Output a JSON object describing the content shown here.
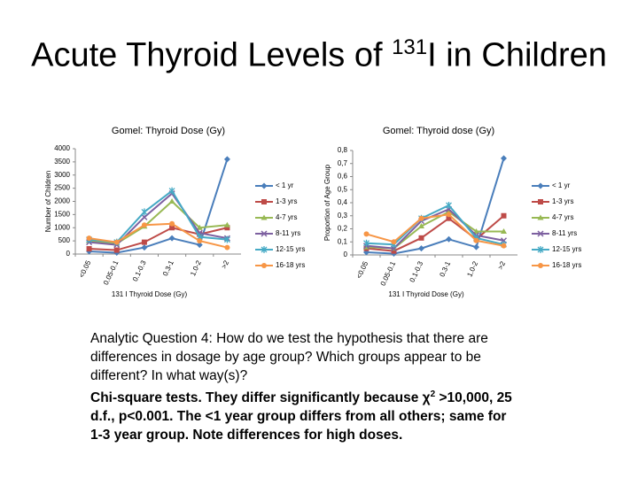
{
  "slide": {
    "title_before": "Acute Thyroid Levels of ",
    "title_sup": "131",
    "title_after": "I in Children",
    "question": "Analytic Question 4:  How do we test the hypothesis that there are differences in dosage by age group?  Which groups appear to be different?  In what way(s)?",
    "answer_before": "Chi-square tests.   They differ significantly because χ",
    "answer_sup": "2",
    "answer_after": " >10,000, 25 d.f., p<0.001. The <1 year group differs from all others; same for 1-3 year group.  Note differences for high doses."
  },
  "chart_data": [
    {
      "type": "line",
      "title": "Gomel: Thyroid Dose (Gy)",
      "x_label": "131 I Thyroid Dose (Gy)",
      "y_label": "Number of Children",
      "categories": [
        "<0.05",
        "0.05-0.1",
        "0.1-0.3",
        "0.3-1",
        "1.0-2",
        ">2"
      ],
      "ylim": [
        0,
        4000
      ],
      "yticks": [
        0,
        500,
        1000,
        1500,
        2000,
        2500,
        3000,
        3500,
        4000
      ],
      "legend": "right",
      "series": [
        {
          "name": "< 1 yr",
          "color": "#4a7ebb",
          "marker": "diamond",
          "values": [
            100,
            50,
            250,
            600,
            350,
            3600
          ]
        },
        {
          "name": "1-3 yrs",
          "color": "#be4b48",
          "marker": "square",
          "values": [
            200,
            150,
            450,
            1000,
            750,
            1000
          ]
        },
        {
          "name": "4-7 yrs",
          "color": "#98b954",
          "marker": "triangle",
          "values": [
            500,
            400,
            1050,
            2000,
            1000,
            1100
          ]
        },
        {
          "name": "8-11 yrs",
          "color": "#7d60a0",
          "marker": "x",
          "values": [
            450,
            350,
            1400,
            2300,
            800,
            600
          ]
        },
        {
          "name": "12-15 yrs",
          "color": "#46aac5",
          "marker": "star",
          "values": [
            550,
            450,
            1600,
            2400,
            650,
            550
          ]
        },
        {
          "name": "16-18 yrs",
          "color": "#f79646",
          "marker": "circle",
          "values": [
            600,
            450,
            1100,
            1150,
            500,
            250
          ]
        }
      ]
    },
    {
      "type": "line",
      "title": "Gomel: Thyroid dose (Gy)",
      "x_label": "131 I Thyroid Dose (Gy)",
      "y_label": "Proportion of Age Group",
      "categories": [
        "<0.05",
        "0.05-0.1",
        "0.1-0.3",
        "0.3-1",
        "1.0-2",
        ">2"
      ],
      "ylim": [
        0,
        0.8
      ],
      "yticks": [
        0,
        {
          "value": 0.1,
          "label": "0,1"
        },
        {
          "value": 0.2,
          "label": "0,2"
        },
        {
          "value": 0.3,
          "label": "0,3"
        },
        {
          "value": 0.4,
          "label": "0,4"
        },
        {
          "value": 0.5,
          "label": "0,5"
        },
        {
          "value": 0.6,
          "label": "0,6"
        },
        {
          "value": 0.7,
          "label": "0,7"
        },
        {
          "value": 0.8,
          "label": "0,8"
        }
      ],
      "legend": "right",
      "series": [
        {
          "name": "< 1 yr",
          "color": "#4a7ebb",
          "marker": "diamond",
          "values": [
            0.02,
            0.01,
            0.05,
            0.12,
            0.06,
            0.74
          ]
        },
        {
          "name": "1-3 yrs",
          "color": "#be4b48",
          "marker": "square",
          "values": [
            0.05,
            0.03,
            0.13,
            0.28,
            0.12,
            0.3
          ]
        },
        {
          "name": "4-7 yrs",
          "color": "#98b954",
          "marker": "triangle",
          "values": [
            0.06,
            0.05,
            0.22,
            0.33,
            0.18,
            0.18
          ]
        },
        {
          "name": "8-11 yrs",
          "color": "#7d60a0",
          "marker": "x",
          "values": [
            0.07,
            0.05,
            0.26,
            0.35,
            0.15,
            0.11
          ]
        },
        {
          "name": "12-15 yrs",
          "color": "#46aac5",
          "marker": "star",
          "values": [
            0.09,
            0.08,
            0.28,
            0.38,
            0.13,
            0.08
          ]
        },
        {
          "name": "16-18 yrs",
          "color": "#f79646",
          "marker": "circle",
          "values": [
            0.16,
            0.1,
            0.28,
            0.31,
            0.11,
            0.07
          ]
        }
      ]
    }
  ]
}
